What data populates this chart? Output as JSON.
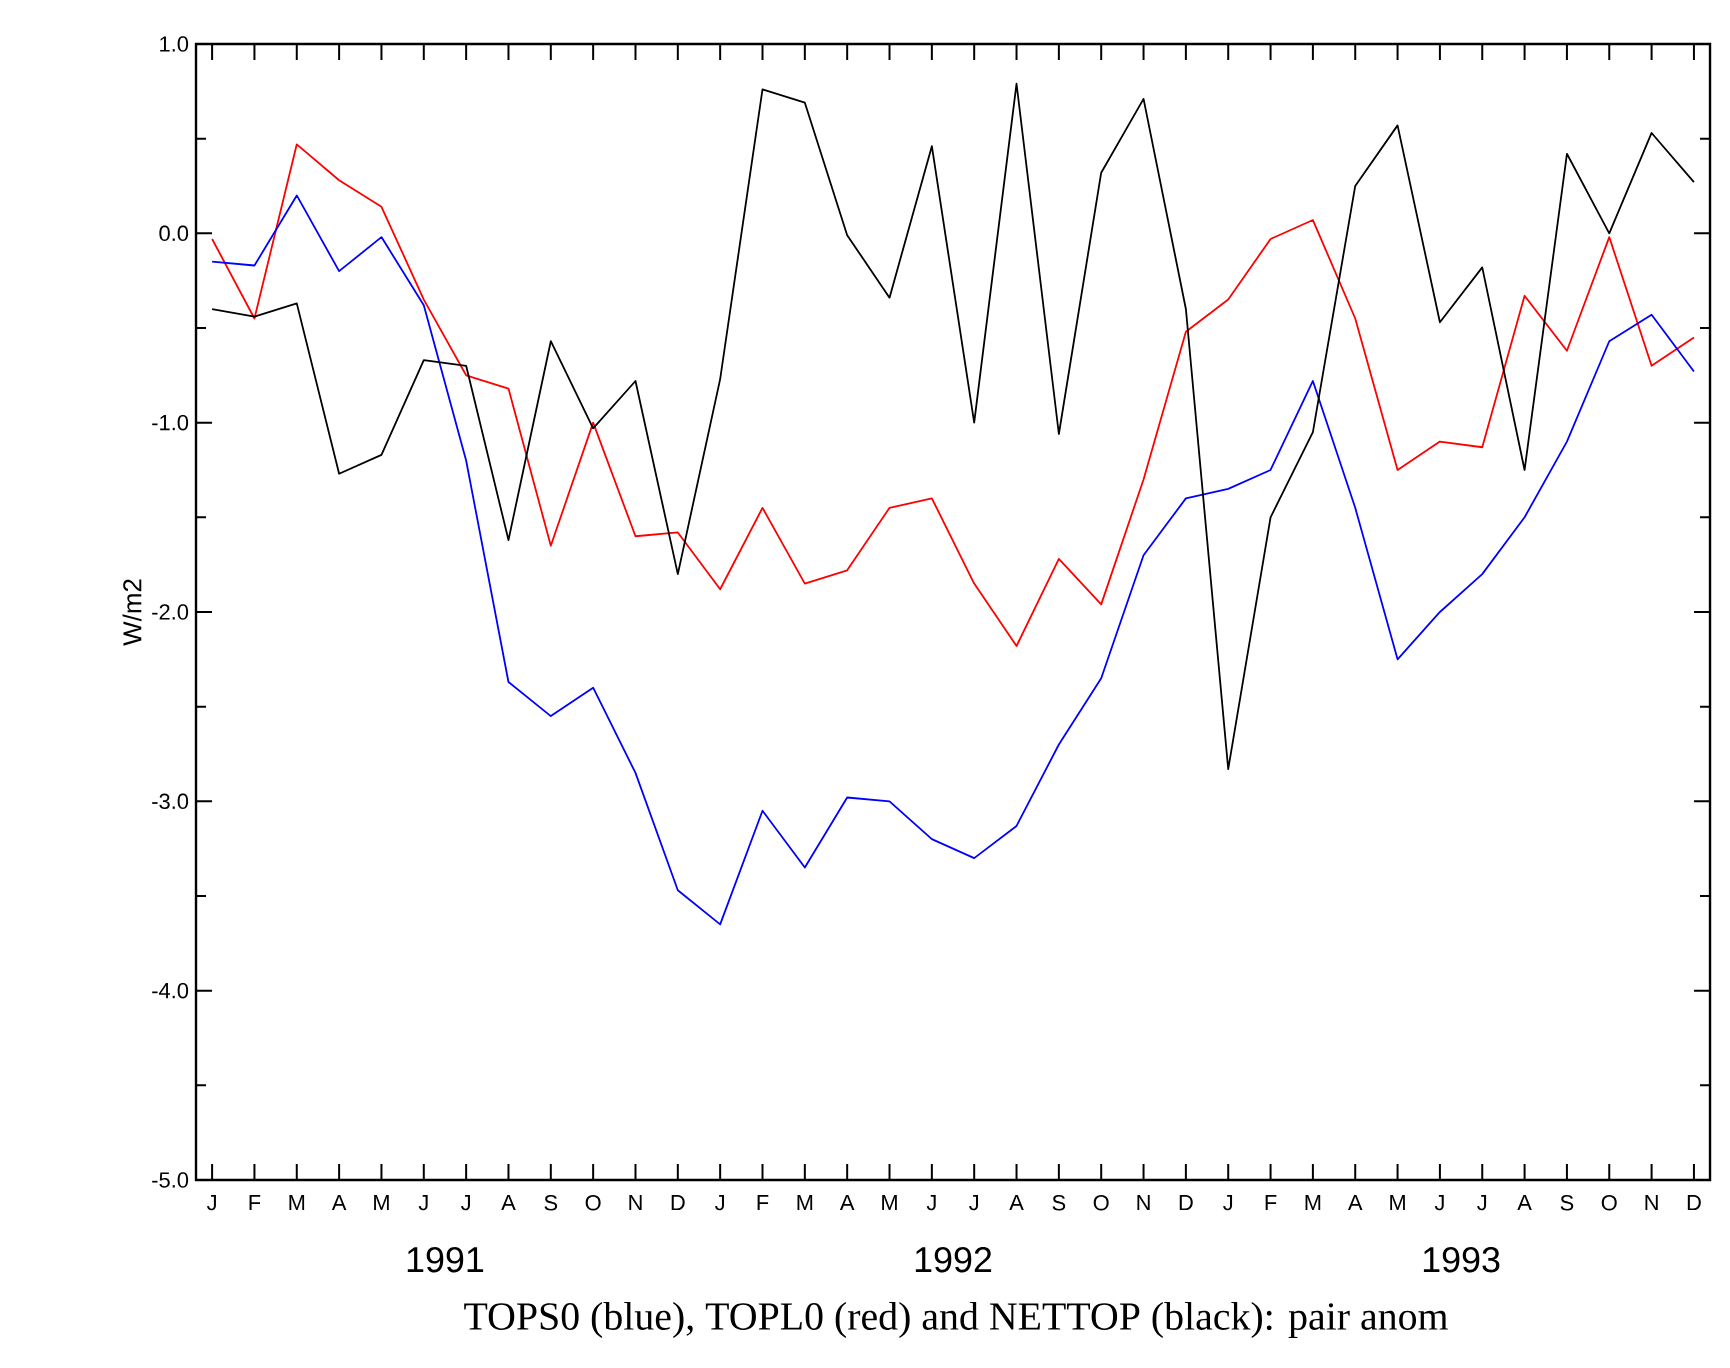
{
  "chart_data": {
    "type": "line",
    "title": "TOPS0 (blue), TOPL0 (red) and NETTOP (black): pair anom",
    "ylabel": "W/m2",
    "categories": [
      "J",
      "F",
      "M",
      "A",
      "M",
      "J",
      "J",
      "A",
      "S",
      "O",
      "N",
      "D",
      "J",
      "F",
      "M",
      "A",
      "M",
      "J",
      "J",
      "A",
      "S",
      "O",
      "N",
      "D",
      "J",
      "F",
      "M",
      "A",
      "M",
      "J",
      "J",
      "A",
      "S",
      "O",
      "N",
      "D"
    ],
    "annotations": [
      "1991",
      "1992",
      "1993"
    ],
    "ylim": [
      -5,
      1
    ],
    "yticks": [
      {
        "value": -5,
        "label": "-5.0"
      },
      {
        "value": -4,
        "label": "-4.0"
      },
      {
        "value": -3,
        "label": "-3.0"
      },
      {
        "value": -2,
        "label": "-2.0"
      },
      {
        "value": -1,
        "label": "-1.0"
      },
      {
        "value": 0,
        "label": "0.0"
      },
      {
        "value": 1,
        "label": "1.0"
      }
    ],
    "grid": false,
    "line_style": "solid",
    "series": [
      {
        "color": "#ff0000",
        "values": [
          -0.03,
          -0.45,
          0.47,
          0.28,
          0.14,
          -0.35,
          -0.75,
          -0.82,
          -1.65,
          -1.0,
          -1.6,
          -1.58,
          -1.88,
          -1.45,
          -1.85,
          -1.78,
          -1.45,
          -1.4,
          -1.85,
          -2.18,
          -1.72,
          -1.96,
          -1.3,
          -0.52,
          -0.35,
          -0.03,
          0.07,
          -0.45,
          -1.25,
          -1.1,
          -1.13,
          -0.33,
          -0.62,
          -0.02,
          -0.7,
          -0.55
        ]
      },
      {
        "color": "#0000ff",
        "values": [
          -0.15,
          -0.17,
          0.2,
          -0.2,
          -0.02,
          -0.38,
          -1.2,
          -2.37,
          -2.55,
          -2.4,
          -2.85,
          -3.47,
          -3.65,
          -3.05,
          -3.35,
          -2.98,
          -3.0,
          -3.2,
          -3.3,
          -3.13,
          -2.7,
          -2.35,
          -1.7,
          -1.4,
          -1.35,
          -1.25,
          -0.78,
          -1.45,
          -2.25,
          -2.0,
          -1.8,
          -1.5,
          -1.1,
          -0.57,
          -0.43,
          -0.73
        ]
      },
      {
        "color": "#000000",
        "values": [
          -0.4,
          -0.44,
          -0.37,
          -1.27,
          -1.17,
          -0.67,
          -0.7,
          -1.62,
          -0.57,
          -1.03,
          -0.78,
          -1.8,
          -0.77,
          0.76,
          0.69,
          -0.01,
          -0.34,
          0.46,
          -1.0,
          0.79,
          -1.06,
          0.32,
          0.71,
          -0.4,
          -2.83,
          -1.5,
          -1.05,
          0.25,
          0.57,
          -0.47,
          -0.18,
          -1.25,
          0.42,
          0.0,
          0.53,
          0.27
        ]
      }
    ]
  }
}
